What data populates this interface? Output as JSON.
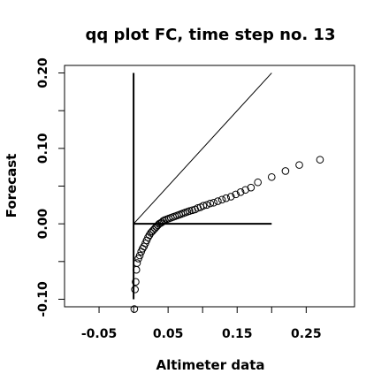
{
  "chart_data": {
    "type": "scatter",
    "title": "qq plot FC, time step no. 13",
    "xlabel": "Altimeter data",
    "ylabel": "Forecast",
    "xlim": [
      -0.1,
      0.32
    ],
    "ylim": [
      -0.11,
      0.21
    ],
    "x_ticks": [
      {
        "value": -0.05,
        "label": "-0.05"
      },
      {
        "value": 0.0,
        "label": ""
      },
      {
        "value": 0.05,
        "label": "0.05"
      },
      {
        "value": 0.1,
        "label": ""
      },
      {
        "value": 0.15,
        "label": "0.15"
      },
      {
        "value": 0.2,
        "label": ""
      },
      {
        "value": 0.25,
        "label": "0.25"
      }
    ],
    "y_ticks": [
      {
        "value": -0.1,
        "label": "-0.10"
      },
      {
        "value": -0.05,
        "label": ""
      },
      {
        "value": 0.0,
        "label": "0.00"
      },
      {
        "value": 0.05,
        "label": ""
      },
      {
        "value": 0.1,
        "label": "0.10"
      },
      {
        "value": 0.15,
        "label": ""
      },
      {
        "value": 0.2,
        "label": "0.20"
      }
    ],
    "grid": false,
    "reference_lines": [
      {
        "name": "identity",
        "x": [
          0.0,
          0.2
        ],
        "y": [
          0.0,
          0.2
        ]
      },
      {
        "name": "horizontal-zero",
        "x": [
          0.0,
          0.2
        ],
        "y": [
          0.0,
          0.0
        ]
      },
      {
        "name": "vertical-zero",
        "x": [
          0.0,
          0.0
        ],
        "y": [
          -0.1,
          0.2
        ]
      }
    ],
    "points": {
      "marker": "open-circle",
      "color": "#000000",
      "x": [
        0.001,
        0.002,
        0.003,
        0.004,
        0.005,
        0.007,
        0.009,
        0.011,
        0.013,
        0.015,
        0.017,
        0.019,
        0.021,
        0.023,
        0.025,
        0.027,
        0.029,
        0.031,
        0.033,
        0.035,
        0.037,
        0.039,
        0.041,
        0.043,
        0.045,
        0.048,
        0.051,
        0.054,
        0.057,
        0.06,
        0.063,
        0.066,
        0.069,
        0.072,
        0.075,
        0.078,
        0.081,
        0.085,
        0.089,
        0.093,
        0.097,
        0.101,
        0.106,
        0.111,
        0.116,
        0.122,
        0.128,
        0.134,
        0.141,
        0.148,
        0.155,
        0.162,
        0.17,
        0.18,
        0.2,
        0.22,
        0.24,
        0.27
      ],
      "y": [
        -0.113,
        -0.087,
        -0.077,
        -0.061,
        -0.052,
        -0.046,
        -0.042,
        -0.037,
        -0.033,
        -0.03,
        -0.026,
        -0.022,
        -0.018,
        -0.015,
        -0.012,
        -0.01,
        -0.008,
        -0.006,
        -0.004,
        -0.002,
        0.0,
        0.001,
        0.002,
        0.004,
        0.005,
        0.006,
        0.007,
        0.008,
        0.009,
        0.01,
        0.011,
        0.012,
        0.013,
        0.014,
        0.015,
        0.016,
        0.017,
        0.018,
        0.019,
        0.021,
        0.022,
        0.024,
        0.025,
        0.027,
        0.028,
        0.03,
        0.032,
        0.034,
        0.036,
        0.039,
        0.042,
        0.045,
        0.048,
        0.055,
        0.062,
        0.07,
        0.078,
        0.085
      ]
    }
  }
}
